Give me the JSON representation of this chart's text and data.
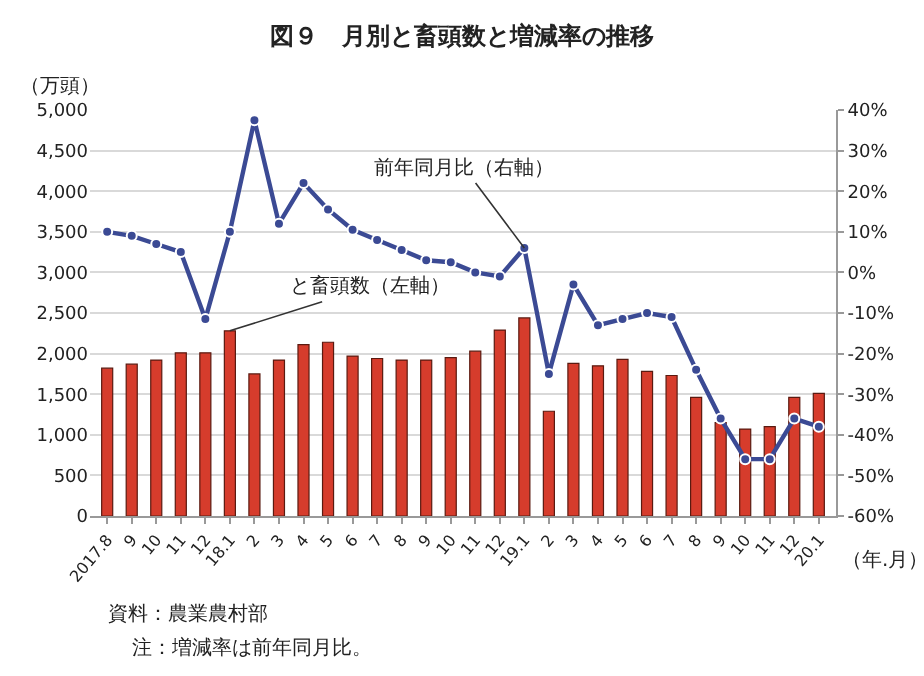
{
  "chart_data": {
    "type": "bar",
    "title": "図９　月別と畜頭数と増減率の推移",
    "ylabel": "（万頭）",
    "xlabel": "（年.月）",
    "categories": [
      "2017.8",
      "9",
      "10",
      "11",
      "12",
      "18.1",
      "2",
      "3",
      "4",
      "5",
      "6",
      "7",
      "8",
      "9",
      "10",
      "11",
      "12",
      "19.1",
      "2",
      "3",
      "4",
      "5",
      "6",
      "7",
      "8",
      "9",
      "10",
      "11",
      "12",
      "20.1"
    ],
    "series": [
      {
        "name": "と畜頭数（左軸）",
        "color": "#d63c2c",
        "values": [
          1820,
          1870,
          1920,
          2010,
          2010,
          2280,
          1750,
          1920,
          2110,
          2140,
          1970,
          1940,
          1920,
          1920,
          1950,
          2030,
          2290,
          2440,
          1290,
          1880,
          1850,
          1930,
          1780,
          1730,
          1460,
          1150,
          1070,
          1100,
          1460,
          1510
        ]
      },
      {
        "name": "前年同月比（右軸）",
        "type": "line",
        "axis": "y2",
        "color": "#3b4a94",
        "marker": "circle",
        "line_style": "solid",
        "values": [
          10,
          9,
          7,
          5,
          -11.5,
          10,
          37.5,
          12,
          22,
          15.5,
          10.5,
          8,
          5.5,
          3,
          2.5,
          0,
          -1,
          6,
          -25,
          -3,
          -13,
          -11.5,
          -10,
          -11,
          -24,
          -36,
          -46,
          -46,
          -36,
          -38
        ]
      }
    ],
    "ylim": [
      0,
      5000
    ],
    "yticks": [
      0,
      {
        "value": 500,
        "label": "500"
      },
      {
        "value": 1000,
        "label": "1,000"
      },
      {
        "value": 1500,
        "label": "1,500"
      },
      {
        "value": 2000,
        "label": "2,000"
      },
      {
        "value": 2500,
        "label": "2,500"
      },
      {
        "value": 3000,
        "label": "3,000"
      },
      {
        "value": 3500,
        "label": "3,500"
      },
      {
        "value": 4000,
        "label": "4,000"
      },
      {
        "value": 4500,
        "label": "4,500"
      },
      {
        "value": 5000,
        "label": "5,000"
      }
    ],
    "y2lim": [
      -60,
      40
    ],
    "y2ticks": [
      {
        "value": -60,
        "label": "-60%"
      },
      {
        "value": -50,
        "label": "-50%"
      },
      {
        "value": -40,
        "label": "-40%"
      },
      {
        "value": -30,
        "label": "-30%"
      },
      {
        "value": -20,
        "label": "-20%"
      },
      {
        "value": -10,
        "label": "-10%"
      },
      {
        "value": 0,
        "label": "0%"
      },
      {
        "value": 10,
        "label": "10%"
      },
      {
        "value": 20,
        "label": "20%"
      },
      {
        "value": 30,
        "label": "30%"
      },
      {
        "value": 40,
        "label": "40%"
      }
    ],
    "grid": "y",
    "legend": false,
    "annotations": [
      "資料：農業農村部",
      "注：増減率は前年同月比。"
    ]
  }
}
